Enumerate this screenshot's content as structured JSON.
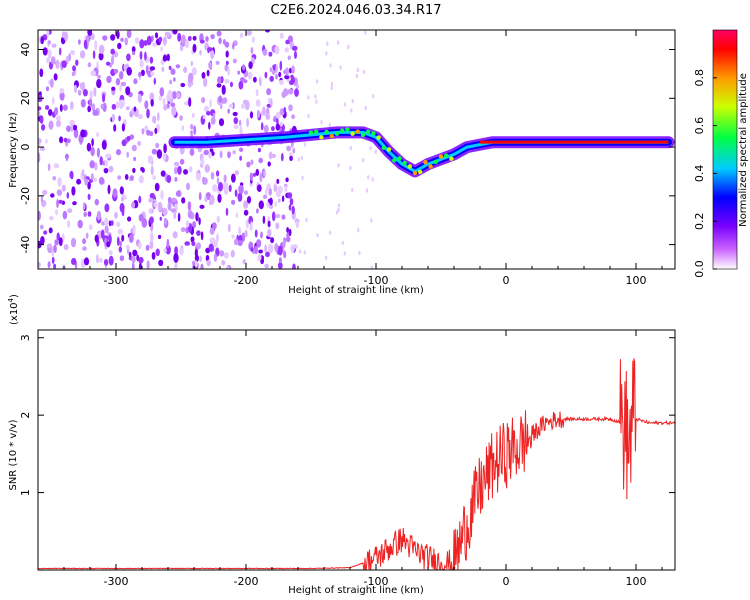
{
  "title": "C2E6.2024.046.03.34.R17",
  "chart_data": [
    {
      "type": "heatmap",
      "xlabel": "Height of straight line (km)",
      "ylabel": "Frequency (Hz)",
      "xlim": [
        -360,
        130
      ],
      "ylim": [
        -50,
        48
      ],
      "xticks": [
        -300,
        -200,
        -100,
        0,
        100
      ],
      "yticks": [
        -40,
        -20,
        0,
        20,
        40
      ],
      "colorbar": {
        "label": "Normalized spectral amplitude",
        "range": [
          0.0,
          1.0
        ],
        "ticks": [
          "0.0",
          "0.2",
          "0.4",
          "0.6",
          "0.8"
        ],
        "colors": [
          "#ffffff",
          "#cc66ff",
          "#7700ff",
          "#0000ff",
          "#00ccff",
          "#00ff44",
          "#ccff00",
          "#ff9900",
          "#ff0000",
          "#ff0066"
        ]
      },
      "ridge_trace": {
        "x": [
          -255,
          -230,
          -200,
          -170,
          -150,
          -130,
          -110,
          -100,
          -90,
          -80,
          -70,
          -60,
          -50,
          -40,
          -30,
          -20,
          -10,
          0,
          20,
          60,
          90,
          125
        ],
        "y": [
          2,
          2,
          3,
          4,
          5,
          6,
          6,
          4,
          -2,
          -7,
          -10,
          -7,
          -5,
          -3,
          0,
          1,
          2,
          2,
          2,
          2,
          2,
          2
        ]
      },
      "noise_region_x": [
        -360,
        -160
      ]
    },
    {
      "type": "line",
      "xlabel": "Height of straight line (km)",
      "ylabel": "SNR (10 * v/v)",
      "exponent_label": "(x10",
      "exponent_power": "4",
      "exponent_close": ")",
      "xlim": [
        -360,
        130
      ],
      "ylim": [
        0,
        3.1
      ],
      "xticks": [
        -300,
        -200,
        -100,
        0,
        100
      ],
      "yticks": [
        1,
        2,
        3
      ],
      "color": "#ee2222",
      "series": [
        {
          "x": [
            -360,
            -300,
            -200,
            -150,
            -120,
            -100,
            -90,
            -80,
            -70,
            -60,
            -50,
            -40,
            -30,
            -20,
            -10,
            0,
            10,
            20,
            30,
            40,
            50,
            60,
            70,
            80,
            90,
            95,
            98,
            100,
            110,
            120,
            130
          ],
          "values": [
            0.02,
            0.02,
            0.02,
            0.02,
            0.03,
            0.15,
            0.28,
            0.4,
            0.25,
            0.15,
            0.1,
            0.08,
            0.6,
            1.05,
            1.35,
            1.5,
            1.6,
            1.75,
            1.9,
            1.95,
            1.95,
            1.95,
            1.95,
            1.95,
            1.9,
            1.6,
            2.0,
            1.95,
            1.9,
            1.9,
            1.9
          ]
        }
      ]
    }
  ]
}
